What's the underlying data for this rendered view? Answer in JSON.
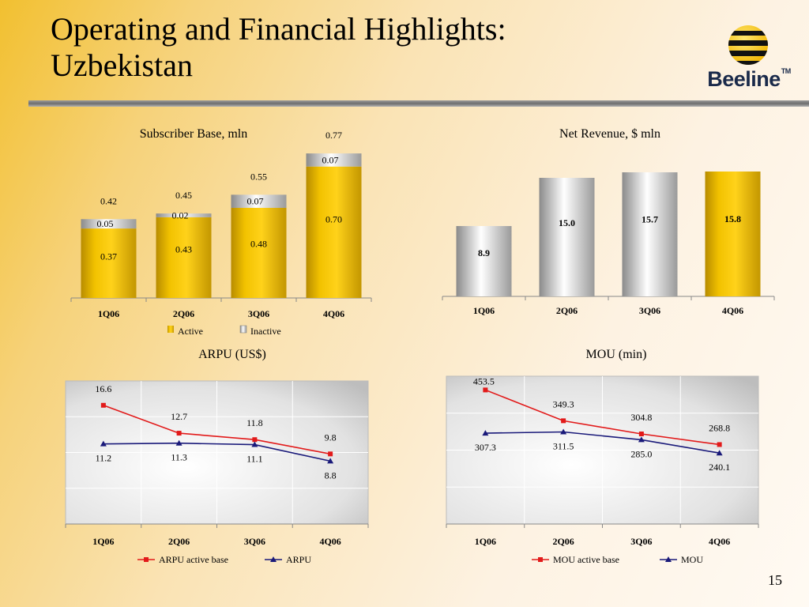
{
  "slide": {
    "title": "Operating and Financial Highlights: Uzbekistan",
    "page_number": "15",
    "logo_text": "Beeline",
    "logo_tm": "TM"
  },
  "colors": {
    "gold": "#f2c200",
    "silver": "#c8c8c8",
    "arpu_active": "#e21a1a",
    "arpu": "#1a1a7a"
  },
  "chart_data": [
    {
      "id": "subscribers",
      "type": "bar",
      "title": "Subscriber Base, mln",
      "categories": [
        "1Q06",
        "2Q06",
        "3Q06",
        "4Q06"
      ],
      "series": [
        {
          "name": "Active",
          "values": [
            0.37,
            0.43,
            0.48,
            0.7
          ],
          "labels": [
            "0.37",
            "0.43",
            "0.48",
            "0.70"
          ]
        },
        {
          "name": "Inactive",
          "values": [
            0.05,
            0.02,
            0.07,
            0.07
          ],
          "labels": [
            "0.05",
            "0.02",
            "0.07",
            "0.07"
          ]
        }
      ],
      "totals": [
        "0.42",
        "0.45",
        "0.55",
        "0.77"
      ],
      "stacked": true,
      "ylim": [
        0,
        0.8
      ],
      "legend": "bottom"
    },
    {
      "id": "revenue",
      "type": "bar",
      "title": "Net Revenue, $ mln",
      "categories": [
        "1Q06",
        "2Q06",
        "3Q06",
        "4Q06"
      ],
      "values": [
        8.9,
        15.0,
        15.7,
        15.8
      ],
      "labels": [
        "8.9",
        "15.0",
        "15.7",
        "15.8"
      ],
      "ylim": [
        0,
        16.5
      ]
    },
    {
      "id": "arpu",
      "type": "line",
      "title": "ARPU (US$)",
      "categories": [
        "1Q06",
        "2Q06",
        "3Q06",
        "4Q06"
      ],
      "series": [
        {
          "name": "ARPU active base",
          "values": [
            16.6,
            12.7,
            11.8,
            9.8
          ],
          "labels": [
            "16.6",
            "12.7",
            "11.8",
            "9.8"
          ]
        },
        {
          "name": "ARPU",
          "values": [
            11.2,
            11.3,
            11.1,
            8.8
          ],
          "labels": [
            "11.2",
            "11.3",
            "11.1",
            "8.8"
          ]
        }
      ],
      "ylim": [
        0,
        20
      ],
      "grid": true,
      "legend": "bottom"
    },
    {
      "id": "mou",
      "type": "line",
      "title": "MOU (min)",
      "categories": [
        "1Q06",
        "2Q06",
        "3Q06",
        "4Q06"
      ],
      "series": [
        {
          "name": "MOU active base",
          "values": [
            453.5,
            349.3,
            304.8,
            268.8
          ],
          "labels": [
            "453.5",
            "349.3",
            "304.8",
            "268.8"
          ]
        },
        {
          "name": "MOU",
          "values": [
            307.3,
            311.5,
            285.0,
            240.1
          ],
          "labels": [
            "307.3",
            "311.5",
            "285.0",
            "240.1"
          ]
        }
      ],
      "ylim": [
        0,
        500
      ],
      "grid": true,
      "legend": "bottom"
    }
  ]
}
